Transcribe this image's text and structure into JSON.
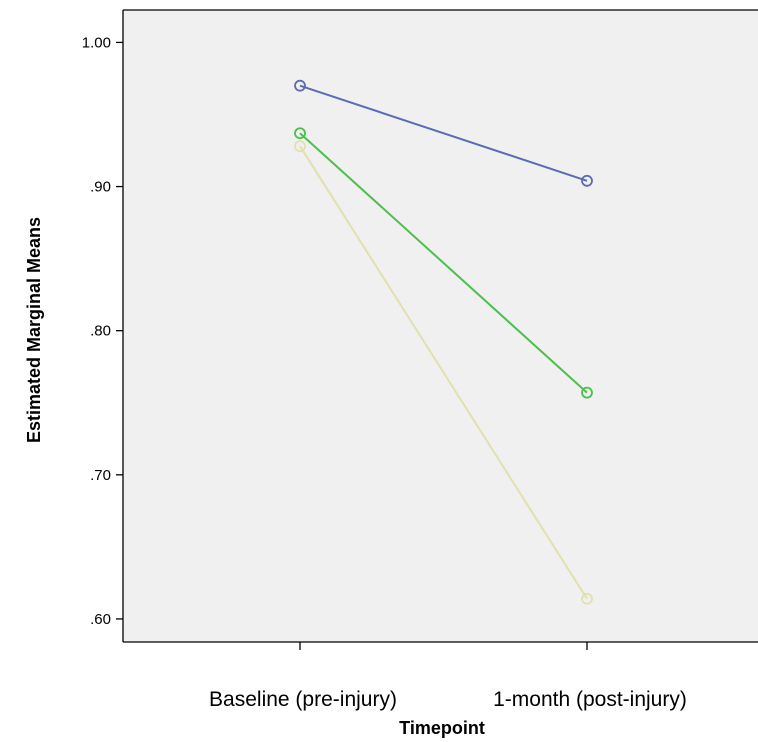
{
  "chart_data": {
    "type": "line",
    "title": "",
    "xlabel": "Timepoint",
    "ylabel": "Estimated Marginal Means",
    "categories": [
      "Baseline (pre-injury)",
      "1-month (post-injury)"
    ],
    "y_ticks": [
      "1.00",
      ".90",
      ".80",
      ".70",
      ".60"
    ],
    "ylim": [
      0.584,
      1.0225
    ],
    "grid": false,
    "legend": "none",
    "background_color": "#f0f0f0",
    "series": [
      {
        "values": [
          0.97,
          0.904
        ],
        "color": "#5b6bb5"
      },
      {
        "values": [
          0.937,
          0.757
        ],
        "color": "#4cbf4c"
      },
      {
        "values": [
          0.928,
          0.614
        ],
        "color": "#e2e0ae"
      }
    ]
  }
}
